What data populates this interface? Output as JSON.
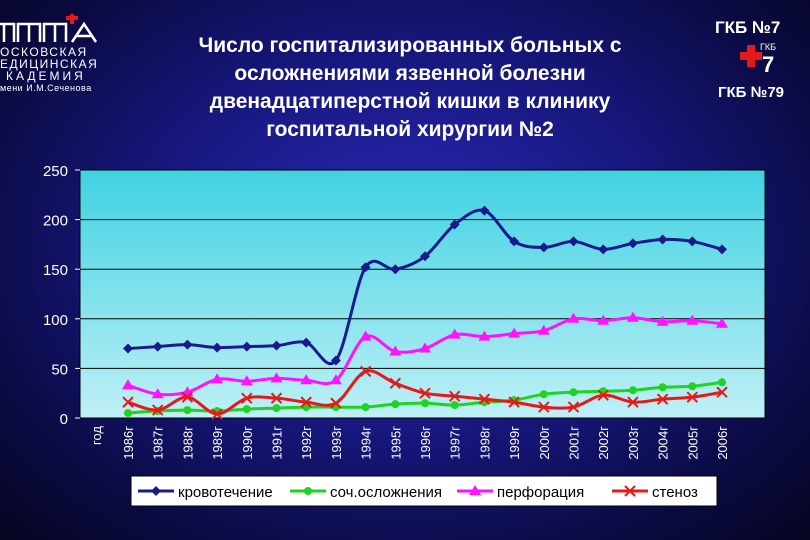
{
  "header": {
    "title_lines": [
      "Число госпитализированных больных с",
      "осложнениями язвенной болезни",
      "двенадцатиперстной кишки в клинику",
      "госпитальной хирургии №2"
    ],
    "hospital_top": "ГКБ №7",
    "hospital_logo_text": "ГКБ",
    "hospital_logo_number": "7",
    "hospital_bottom": "ГКБ №79",
    "logo_lines": [
      "ОСКОВСКАЯ",
      "ЕДИЦИНСКАЯ",
      "КАДЕМИЯ",
      "мени И.М.Сеченова"
    ]
  },
  "colors": {
    "plot_bg_top": "#3fd2e2",
    "plot_bg_bottom": "#bff0f6",
    "series": [
      "#1a1a8c",
      "#21d221",
      "#ff12ff",
      "#e41a1a"
    ]
  },
  "chart_data": {
    "type": "line",
    "x_axis_title": "год",
    "categories": [
      "1986г",
      "1987г",
      "1988г",
      "1989г",
      "1990г",
      "1991г",
      "1992г",
      "1993г",
      "1994г",
      "1995г",
      "1996г",
      "1997г",
      "1998г",
      "1999г",
      "2000г",
      "2001г",
      "2002г",
      "2003г",
      "2004г",
      "2005г",
      "2006г"
    ],
    "ylim": [
      0,
      250
    ],
    "yticks": [
      0,
      50,
      100,
      150,
      200,
      250
    ],
    "grid": "horizontal",
    "legend_position": "bottom",
    "series": [
      {
        "name": "кровотечение",
        "marker": "diamond",
        "values": [
          70,
          72,
          74,
          71,
          72,
          73,
          76,
          58,
          152,
          150,
          163,
          195,
          209,
          178,
          172,
          178,
          170,
          176,
          180,
          178,
          170
        ]
      },
      {
        "name": "соч.осложнения",
        "marker": "circle",
        "values": [
          5,
          7,
          8,
          7,
          9,
          10,
          11,
          11,
          11,
          14,
          15,
          13,
          16,
          18,
          24,
          26,
          27,
          28,
          31,
          32,
          36
        ]
      },
      {
        "name": "перфорация",
        "marker": "triangle",
        "values": [
          33,
          24,
          26,
          39,
          37,
          40,
          38,
          38,
          82,
          67,
          70,
          84,
          82,
          85,
          88,
          100,
          98,
          101,
          97,
          98,
          95
        ]
      },
      {
        "name": "стеноз",
        "marker": "x",
        "values": [
          16,
          8,
          21,
          4,
          20,
          20,
          16,
          15,
          47,
          35,
          25,
          22,
          19,
          16,
          11,
          11,
          23,
          16,
          19,
          21,
          26
        ]
      }
    ]
  }
}
